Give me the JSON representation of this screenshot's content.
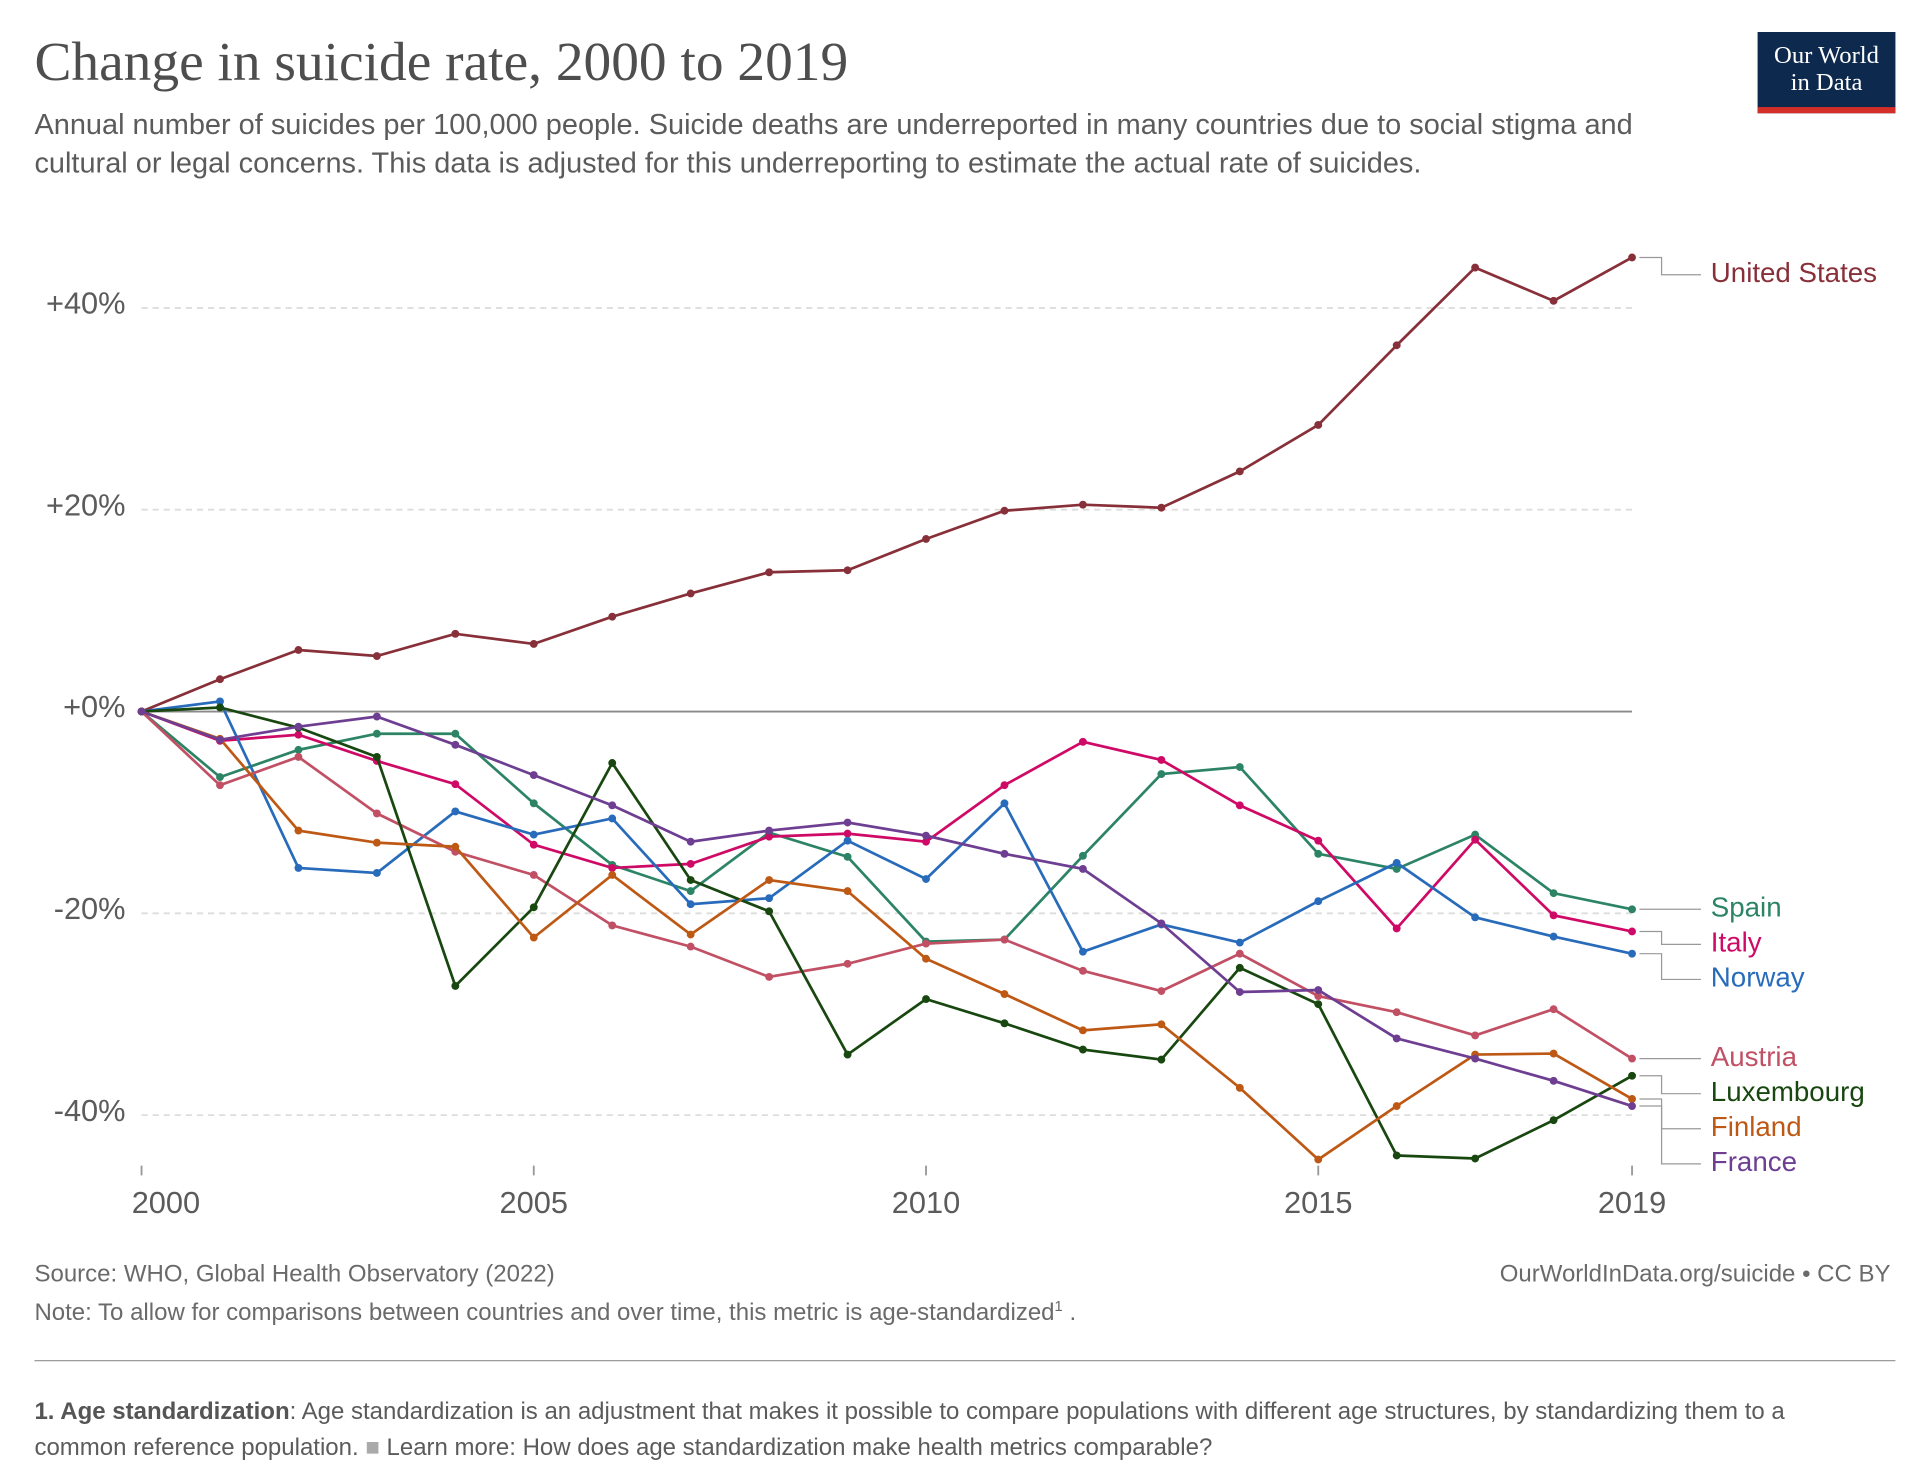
{
  "logo": [
    "Our World",
    "in Data"
  ],
  "chart_data": {
    "type": "line",
    "title": "Change in suicide rate, 2000 to 2019",
    "subtitle": "Annual number of suicides per 100,000 people. Suicide deaths are underreported in many countries due to social stigma and cultural or legal concerns. This data is adjusted for this underreporting to estimate the actual rate of suicides.",
    "x": [
      2000,
      2001,
      2002,
      2003,
      2004,
      2005,
      2006,
      2007,
      2008,
      2009,
      2010,
      2011,
      2012,
      2013,
      2014,
      2015,
      2016,
      2017,
      2018,
      2019
    ],
    "xlim": [
      2000,
      2019
    ],
    "xticks": [
      2000,
      2005,
      2010,
      2015,
      2019
    ],
    "ylim": [
      -45,
      46
    ],
    "yticks": [
      {
        "value": 40,
        "label": "+40%"
      },
      {
        "value": 20,
        "label": "+20%"
      },
      {
        "value": 0,
        "label": "+0%"
      },
      {
        "value": -20,
        "label": "-20%"
      },
      {
        "value": -40,
        "label": "-40%"
      }
    ],
    "grid": true,
    "series": [
      {
        "name": "United States",
        "color": "#883039",
        "values": [
          0,
          3.2,
          6.1,
          5.5,
          7.7,
          6.7,
          9.4,
          11.7,
          13.8,
          14.0,
          17.1,
          19.9,
          20.5,
          20.2,
          23.8,
          28.4,
          36.3,
          44.0,
          40.7,
          45.0
        ]
      },
      {
        "name": "Spain",
        "color": "#2c8465",
        "values": [
          0,
          -6.5,
          -3.8,
          -2.2,
          -2.2,
          -9.1,
          -15.2,
          -17.8,
          -12.0,
          -14.4,
          -22.8,
          -22.6,
          -14.3,
          -6.2,
          -5.5,
          -14.1,
          -15.6,
          -12.2,
          -18.0,
          -19.6
        ]
      },
      {
        "name": "Italy",
        "color": "#cf0a66",
        "values": [
          0,
          -2.9,
          -2.3,
          -4.9,
          -7.2,
          -13.2,
          -15.5,
          -15.1,
          -12.4,
          -12.1,
          -12.9,
          -7.3,
          -3.0,
          -4.8,
          -9.3,
          -12.8,
          -21.5,
          -12.7,
          -20.2,
          -21.8
        ]
      },
      {
        "name": "Norway",
        "color": "#286bbb",
        "values": [
          0,
          1.0,
          -15.5,
          -16.0,
          -9.9,
          -12.2,
          -10.6,
          -19.1,
          -18.5,
          -12.8,
          -16.6,
          -9.1,
          -23.8,
          -21.1,
          -22.9,
          -18.8,
          -15.0,
          -20.4,
          -22.3,
          -24.0
        ]
      },
      {
        "name": "Austria",
        "color": "#c15065",
        "values": [
          0,
          -7.3,
          -4.5,
          -10.1,
          -13.9,
          -16.2,
          -21.2,
          -23.3,
          -26.3,
          -25.0,
          -23.0,
          -22.6,
          -25.7,
          -27.7,
          -24.0,
          -28.2,
          -29.8,
          -32.1,
          -29.5,
          -34.4
        ]
      },
      {
        "name": "Luxembourg",
        "color": "#18470f",
        "values": [
          0,
          0.4,
          -1.6,
          -4.5,
          -27.2,
          -19.4,
          -5.1,
          -16.7,
          -19.8,
          -34.0,
          -28.5,
          -30.9,
          -33.5,
          -34.5,
          -25.4,
          -29.0,
          -44.0,
          -44.3,
          -40.5,
          -36.1
        ]
      },
      {
        "name": "Finland",
        "color": "#be5915",
        "values": [
          0,
          -2.7,
          -11.8,
          -13.0,
          -13.4,
          -22.4,
          -16.2,
          -22.1,
          -16.7,
          -17.8,
          -24.5,
          -28.0,
          -31.6,
          -31.0,
          -37.3,
          -44.4,
          -39.1,
          -34.0,
          -33.9,
          -38.4
        ]
      },
      {
        "name": "France",
        "color": "#6d3e91",
        "values": [
          0,
          -2.8,
          -1.5,
          -0.5,
          -3.3,
          -6.3,
          -9.3,
          -12.9,
          -11.8,
          -11.0,
          -12.3,
          -14.1,
          -15.6,
          -21.0,
          -27.8,
          -27.6,
          -32.4,
          -34.4,
          -36.6,
          -39.1
        ]
      }
    ]
  },
  "source": "Source: WHO, Global Health Observatory (2022)",
  "url": "OurWorldInData.org/suicide • CC BY",
  "note": {
    "text": "Note: To allow for comparisons between countries and over time, this metric is age-standardized",
    "sup": "1",
    "end": " ."
  },
  "footnote": {
    "term": "1. Age standardization",
    "text": ": Age standardization is an adjustment that makes it possible to compare populations with different age structures, by standardizing them to a common reference population.",
    "link": "Learn more: How does age standardization make health metrics comparable?"
  }
}
